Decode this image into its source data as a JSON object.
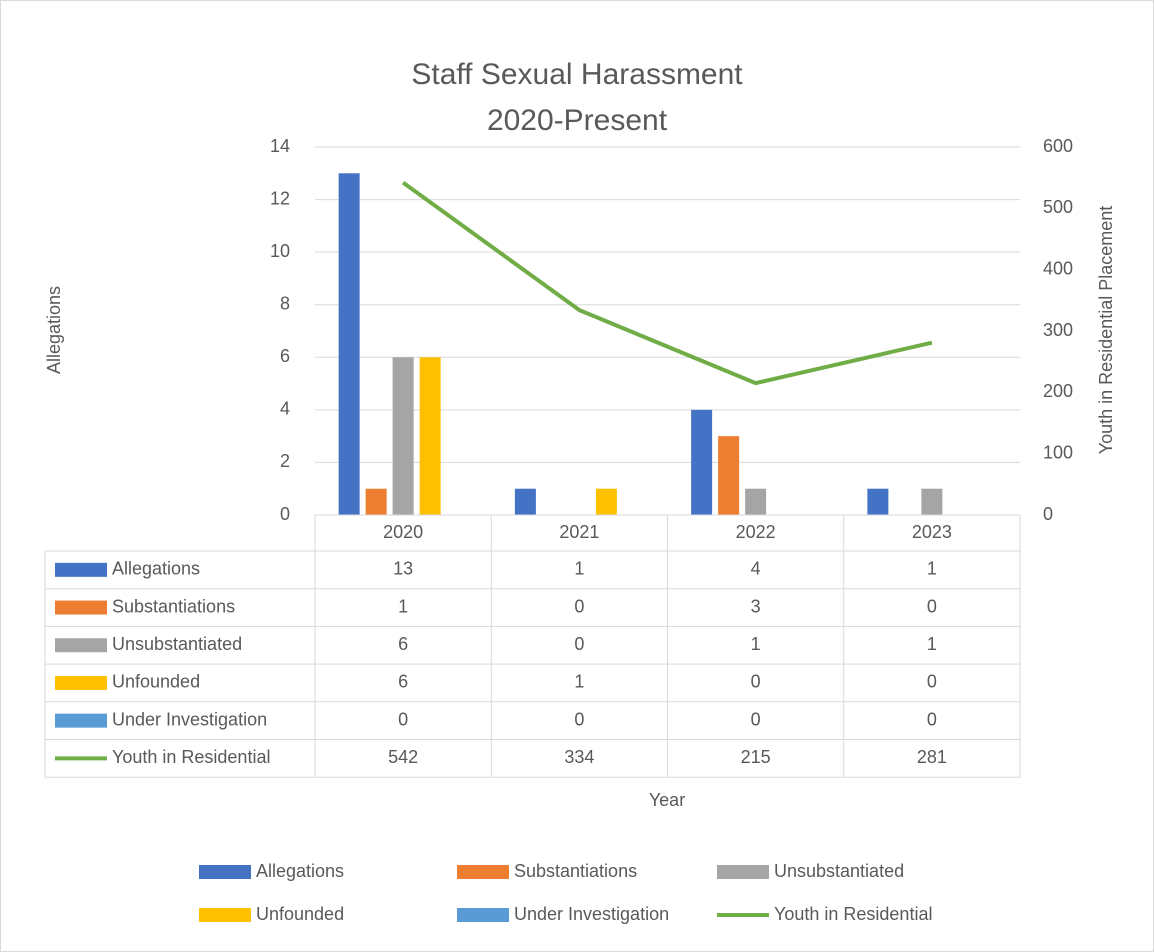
{
  "chart_data": {
    "type": "bar",
    "title": "Staff Sexual Harassment",
    "subtitle": "2020-Present",
    "x_label": "Year",
    "y_label": "Allegations",
    "y2_label": "Youth in Residential Placement",
    "categories": [
      "2020",
      "2021",
      "2022",
      "2023"
    ],
    "series": [
      {
        "name": "Allegations",
        "color": "#4472c4",
        "values": [
          13,
          1,
          4,
          1
        ]
      },
      {
        "name": "Substantiations",
        "color": "#ed7d31",
        "values": [
          1,
          0,
          3,
          0
        ]
      },
      {
        "name": "Unsubstantiated",
        "color": "#a5a5a5",
        "values": [
          6,
          0,
          1,
          1
        ]
      },
      {
        "name": "Unfounded",
        "color": "#ffc000",
        "values": [
          6,
          1,
          0,
          0
        ]
      },
      {
        "name": "Under Investigation",
        "color": "#5b9bd5",
        "values": [
          0,
          0,
          0,
          0
        ]
      },
      {
        "name": "Youth in Residential",
        "color": "#70ad47",
        "values": [
          542,
          334,
          215,
          281
        ],
        "type": "line",
        "axis": "y2"
      }
    ],
    "ylim": [
      0,
      14
    ],
    "yticks": [
      0,
      2,
      4,
      6,
      8,
      10,
      12,
      14
    ],
    "y2lim": [
      0,
      600
    ],
    "y2ticks": [
      0,
      100,
      200,
      300,
      400,
      500,
      600
    ],
    "grid": true,
    "data_table": true,
    "legend": "bottom"
  }
}
